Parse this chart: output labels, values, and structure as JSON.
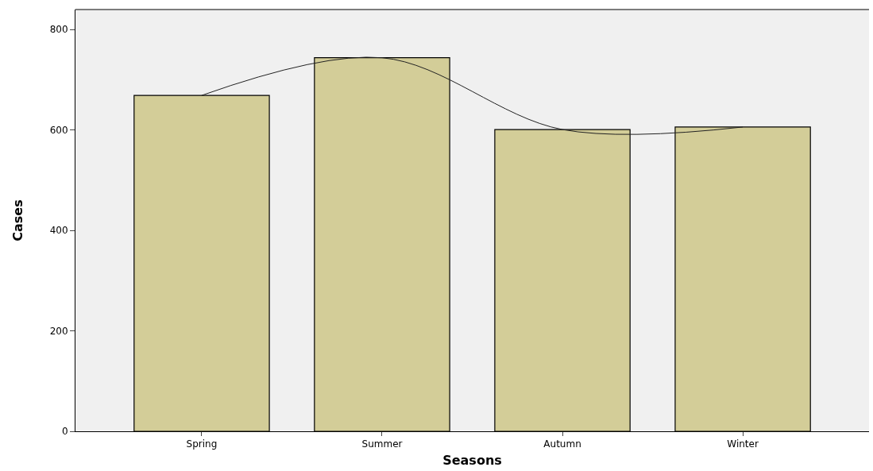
{
  "chart_data": {
    "type": "bar",
    "xlabel": "Seasons",
    "ylabel": "Cases",
    "categories": [
      "Spring",
      "Summer",
      "Autumn",
      "Winter"
    ],
    "series": [
      {
        "color": "#d3cd98",
        "values": [
          669,
          744,
          601,
          606
        ]
      },
      {
        "type": "line",
        "color": "#222222",
        "values": [
          669,
          744,
          601,
          606
        ],
        "marker": "none"
      }
    ],
    "ylim": [
      0,
      840
    ],
    "yticks": [
      0,
      200,
      400,
      600,
      800
    ],
    "grid": false
  }
}
